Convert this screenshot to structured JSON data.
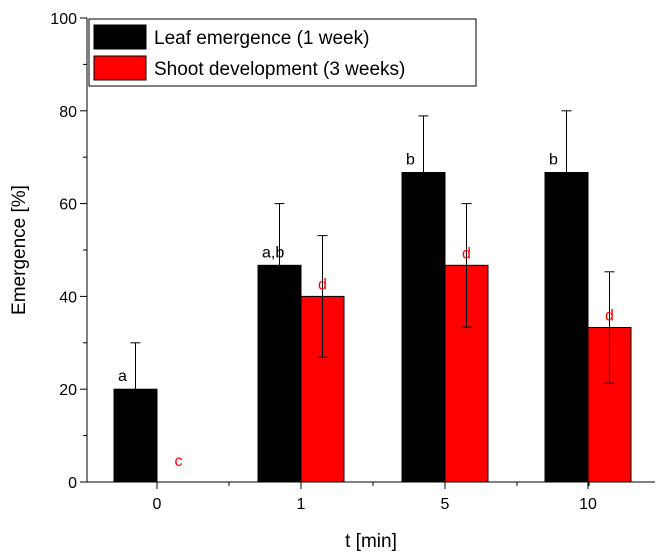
{
  "chart_data": {
    "type": "bar",
    "title": "",
    "xlabel": "t [min]",
    "ylabel": "Emergence [%]",
    "categories": [
      "0",
      "1",
      "5",
      "10"
    ],
    "ylim": [
      0,
      100
    ],
    "yticks": [
      "0",
      "20",
      "40",
      "60",
      "80",
      "100"
    ],
    "grid": false,
    "legend_position": "top-left",
    "series": [
      {
        "name": "Leaf emergence (1 week)",
        "color": "#000000",
        "values": [
          20,
          46.7,
          66.7,
          66.7
        ],
        "errors": [
          10,
          13.3,
          12.2,
          13.3
        ],
        "labels": [
          "a",
          "a,b",
          "b",
          "b"
        ],
        "label_color": "#000000"
      },
      {
        "name": "Shoot development (3 weeks)",
        "color": "#ff0000",
        "values": [
          0,
          40,
          46.7,
          33.3
        ],
        "errors": [
          0,
          13.1,
          13.3,
          12.0
        ],
        "labels": [
          "c",
          "d",
          "d",
          "d"
        ],
        "label_color": "#ff0000"
      }
    ]
  }
}
